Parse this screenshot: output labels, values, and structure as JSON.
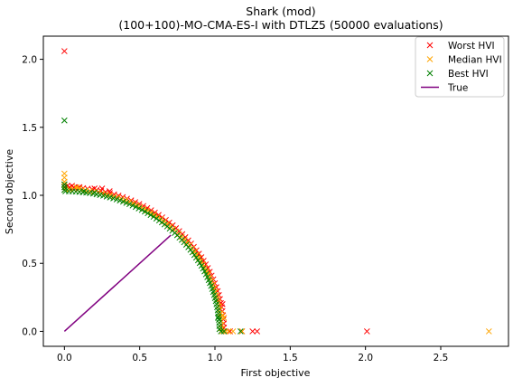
{
  "chart_data": {
    "type": "scatter",
    "title_line1": "Shark (mod)",
    "title_line2": "(100+100)-MO-CMA-ES-I with DTLZ5 (50000 evaluations)",
    "xlabel": "First objective",
    "ylabel": "Second objective",
    "xlim": [
      -0.14,
      2.95
    ],
    "ylim": [
      -0.11,
      2.17
    ],
    "xticks": [
      "0.0",
      "0.5",
      "1.0",
      "1.5",
      "2.0",
      "2.5"
    ],
    "xtick_values": [
      0,
      0.5,
      1.0,
      1.5,
      2.0,
      2.5
    ],
    "yticks": [
      "0.0",
      "0.5",
      "1.0",
      "1.5",
      "2.0"
    ],
    "ytick_values": [
      0,
      0.5,
      1.0,
      1.5,
      2.0
    ],
    "grid": false,
    "legend_position": "top-right",
    "series": [
      {
        "name": "Worst HVI",
        "marker": "x",
        "color": "#ff0000",
        "extra_points": [
          [
            0.0,
            2.06
          ],
          [
            0.0,
            1.08
          ],
          [
            0.02,
            1.07
          ],
          [
            0.05,
            1.07
          ],
          [
            0.1,
            1.06
          ],
          [
            0.2,
            1.05
          ],
          [
            0.25,
            1.05
          ],
          [
            0.3,
            1.03
          ],
          [
            1.05,
            0.2
          ],
          [
            1.07,
            0.0
          ],
          [
            1.1,
            0.0
          ],
          [
            1.18,
            0.0
          ],
          [
            1.25,
            0.0
          ],
          [
            1.28,
            0.0
          ],
          [
            2.01,
            0.0
          ]
        ],
        "arc_radius": 1.06,
        "arc_count": 55
      },
      {
        "name": "Median HVI",
        "marker": "x",
        "color": "#ffa500",
        "extra_points": [
          [
            0.0,
            1.16
          ],
          [
            0.0,
            1.13
          ],
          [
            0.0,
            1.1
          ],
          [
            0.0,
            1.08
          ],
          [
            0.08,
            1.06
          ],
          [
            0.1,
            1.05
          ],
          [
            1.05,
            0.12
          ],
          [
            1.06,
            0.1
          ],
          [
            1.05,
            0.0
          ],
          [
            1.07,
            0.0
          ],
          [
            1.09,
            0.0
          ],
          [
            1.12,
            0.0
          ],
          [
            1.18,
            0.0
          ],
          [
            2.82,
            0.0
          ]
        ],
        "arc_radius": 1.045,
        "arc_count": 60
      },
      {
        "name": "Best HVI",
        "marker": "x",
        "color": "#008000",
        "extra_points": [
          [
            0.0,
            1.55
          ],
          [
            0.0,
            1.08
          ],
          [
            0.0,
            1.06
          ],
          [
            0.0,
            1.04
          ],
          [
            0.13,
            1.03
          ],
          [
            0.2,
            1.02
          ],
          [
            1.02,
            0.1
          ],
          [
            1.04,
            0.0
          ],
          [
            1.06,
            0.0
          ],
          [
            1.17,
            0.0
          ]
        ],
        "arc_radius": 1.03,
        "arc_count": 70
      },
      {
        "name": "True",
        "type": "line",
        "color": "#800080",
        "x": [
          0.0,
          0.707
        ],
        "y": [
          0.0,
          0.707
        ]
      }
    ]
  }
}
